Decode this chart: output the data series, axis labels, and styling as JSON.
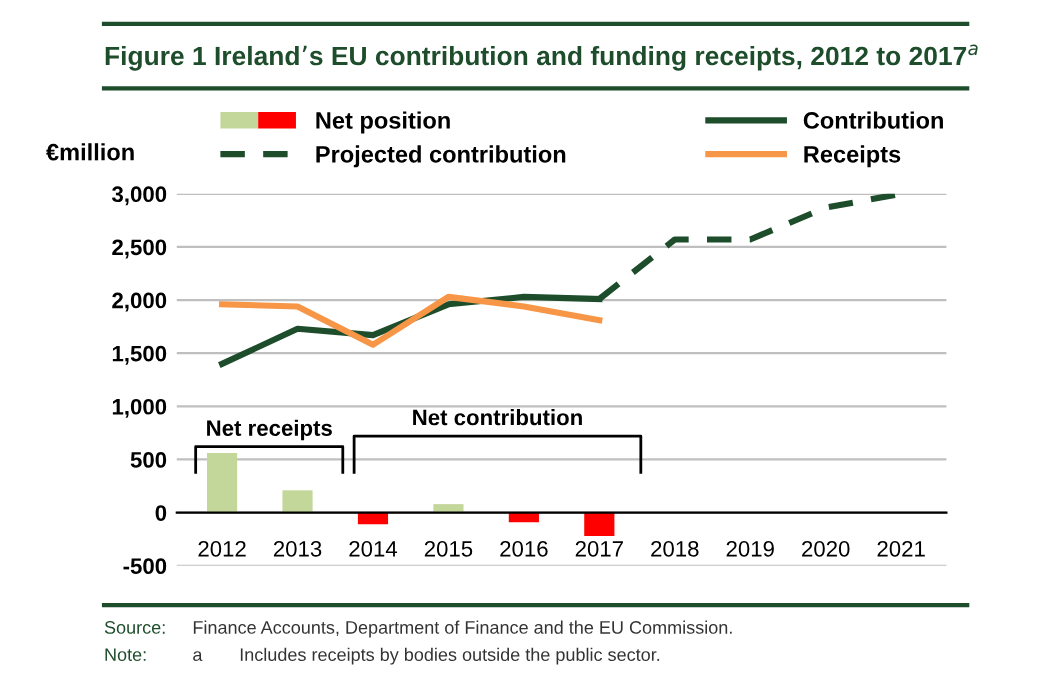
{
  "chart_data": {
    "type": "line",
    "title": "Figure 1 Ireland’s EU contribution and funding receipts, 2012 to 2017$^{a}$",
    "ylabel": "€million",
    "categories": [
      "2012",
      "2013",
      "2014",
      "2015",
      "2016",
      "2017",
      "2018",
      "2019",
      "2020",
      "2021"
    ],
    "series": [
      {
        "name": "Net position",
        "type": "bar",
        "colors": [
          "#c4d79b",
          "#c4d79b",
          "#ff0000",
          "#c4d79b",
          "#ff0000",
          "#ff0000",
          null,
          null,
          null,
          null
        ],
        "values": [
          560,
          210,
          -110,
          80,
          -90,
          -220,
          null,
          null,
          null,
          null
        ]
      },
      {
        "name": "Projected contribution",
        "line_style": "dashed",
        "color": "#1e4d2b",
        "values": [
          null,
          null,
          null,
          null,
          null,
          2010,
          2570,
          2570,
          2870,
          3000
        ]
      },
      {
        "name": "Contribution",
        "line_style": "solid",
        "color": "#1e4d2b",
        "values": [
          1400,
          1730,
          1670,
          1960,
          2030,
          2010,
          null,
          null,
          null,
          null
        ]
      },
      {
        "name": "Receipts",
        "line_style": "solid",
        "color": "#f79646",
        "values": [
          1960,
          1940,
          1580,
          2030,
          1940,
          1810,
          null,
          null,
          null,
          null
        ]
      }
    ],
    "ylim": [
      -500,
      3000
    ],
    "yticks": [
      {
        "value": -500,
        "label": "-500"
      },
      0,
      500,
      {
        "value": 1000,
        "label": "1,000"
      },
      {
        "value": 1500,
        "label": "1,500"
      },
      {
        "value": 2000,
        "label": "2,000"
      },
      {
        "value": 2500,
        "label": "2,500"
      },
      {
        "value": 3000,
        "label": "3,000"
      }
    ],
    "grid": "y",
    "legend": "top",
    "annotations": [
      "Net receipts",
      "Net contribution",
      "Source:",
      "Finance Accounts, Department of Finance and the EU Commission.",
      "Note:",
      "a",
      "Includes receipts by bodies outside the public sector."
    ]
  }
}
